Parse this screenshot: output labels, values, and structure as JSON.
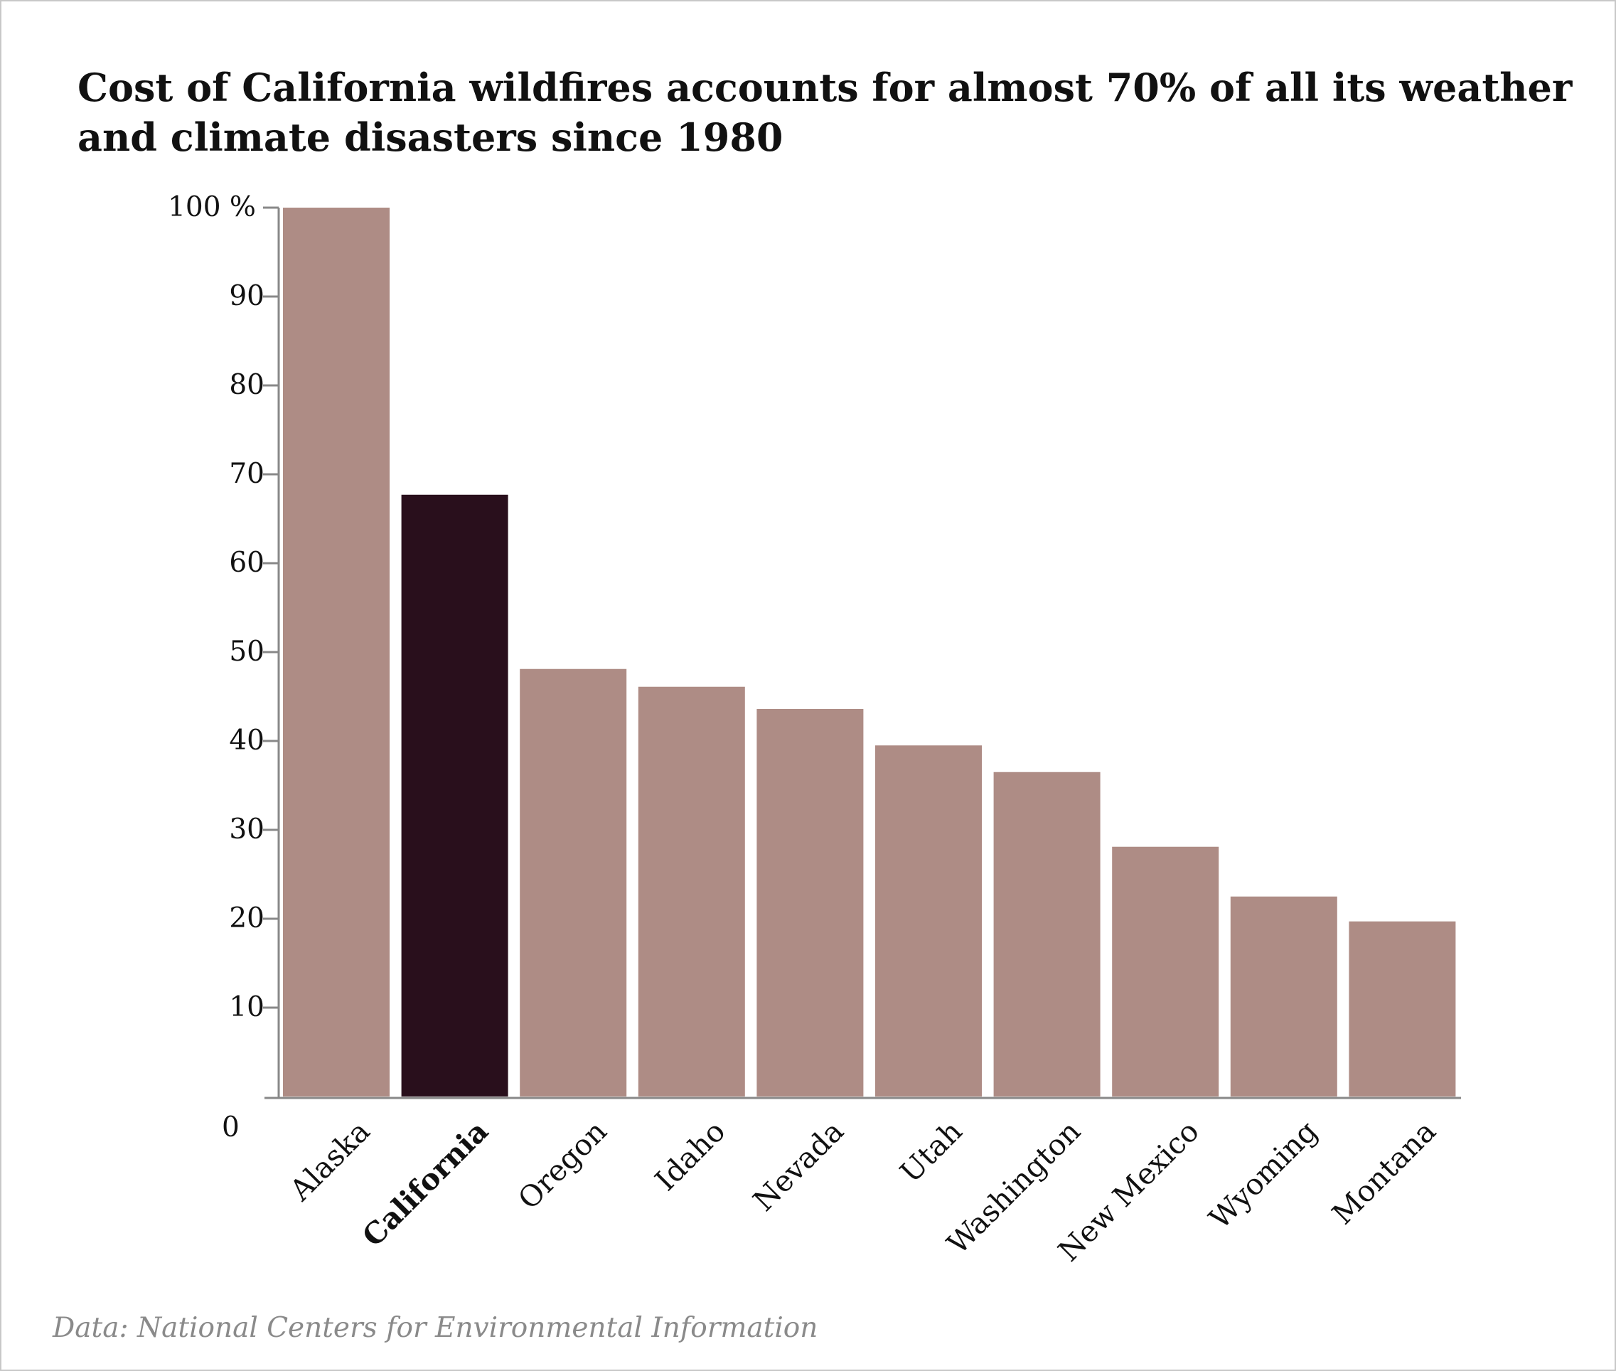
{
  "chart_data": {
    "type": "bar",
    "title": "Cost of California wildfires accounts for almost 70% of all its weather and climate disasters since 1980",
    "source": "Data: National Centers for Environmental Information",
    "categories": [
      "Alaska",
      "California",
      "Oregon",
      "Idaho",
      "Nevada",
      "Utah",
      "Washington",
      "New Mexico",
      "Wyoming",
      "Montana"
    ],
    "values": [
      100,
      67.7,
      48.1,
      46.1,
      43.6,
      39.5,
      36.5,
      28.1,
      22.5,
      19.7
    ],
    "highlight": "California",
    "ylim": [
      0,
      100
    ],
    "yticks": [
      {
        "value": 0,
        "label": "0"
      },
      {
        "value": 10,
        "label": "10"
      },
      {
        "value": 20,
        "label": "20"
      },
      {
        "value": 30,
        "label": "30"
      },
      {
        "value": 40,
        "label": "40"
      },
      {
        "value": 50,
        "label": "50"
      },
      {
        "value": 60,
        "label": "60"
      },
      {
        "value": 70,
        "label": "70"
      },
      {
        "value": 80,
        "label": "80"
      },
      {
        "value": 90,
        "label": "90"
      },
      {
        "value": 100,
        "label": "100 %"
      }
    ],
    "xlabel": "",
    "ylabel": "",
    "grid": false,
    "legend": "none",
    "colors": {
      "bar": "#ae8c85",
      "highlight": "#290f1c",
      "axis": "#888888"
    }
  }
}
